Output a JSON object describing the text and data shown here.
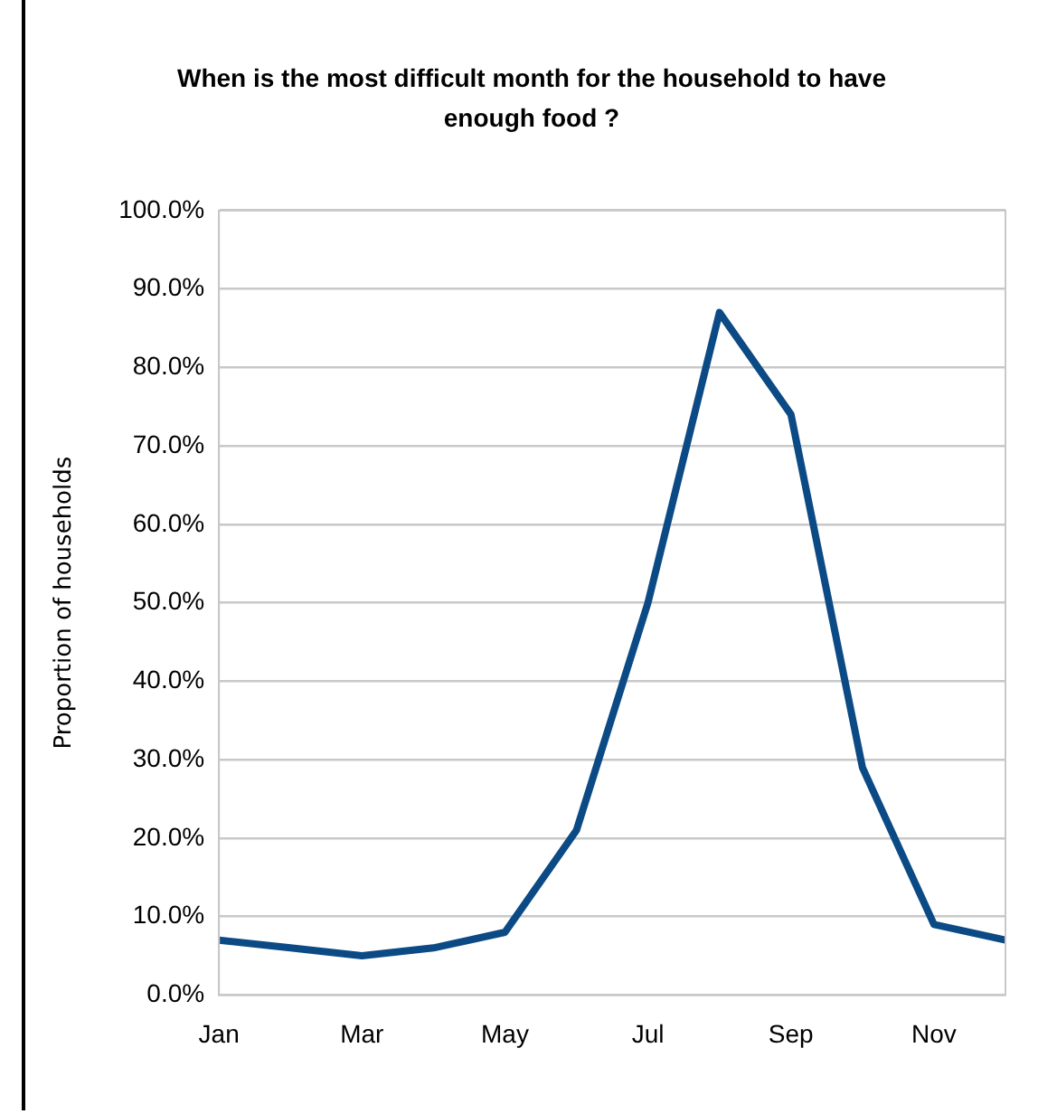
{
  "chart_data": {
    "type": "line",
    "title": "When is the most difficult month for the household  to have enough food ?",
    "ylabel": "Proportion of households",
    "categories": [
      "Jan",
      null,
      "Mar",
      null,
      "May",
      null,
      "Jul",
      null,
      "Sep",
      null,
      "Nov",
      null
    ],
    "series": [
      {
        "color": "#0b4a85",
        "values": [
          7,
          6,
          5,
          6,
          8,
          21,
          50,
          87,
          74,
          29,
          9,
          7
        ]
      }
    ],
    "ylim": [
      0,
      100
    ],
    "yticks": [
      {
        "value": 0,
        "label": "0.0%"
      },
      {
        "value": 10,
        "label": "10.0%"
      },
      {
        "value": 20,
        "label": "20.0%"
      },
      {
        "value": 30,
        "label": "30.0%"
      },
      {
        "value": 40,
        "label": "40.0%"
      },
      {
        "value": 50,
        "label": "50.0%"
      },
      {
        "value": 60,
        "label": "60.0%"
      },
      {
        "value": 70,
        "label": "70.0%"
      },
      {
        "value": 80,
        "label": "80.0%"
      },
      {
        "value": 90,
        "label": "90.0%"
      },
      {
        "value": 100,
        "label": "100.0%"
      }
    ],
    "grid": "y",
    "legend": false,
    "marker": "none",
    "line_style": "solid"
  }
}
